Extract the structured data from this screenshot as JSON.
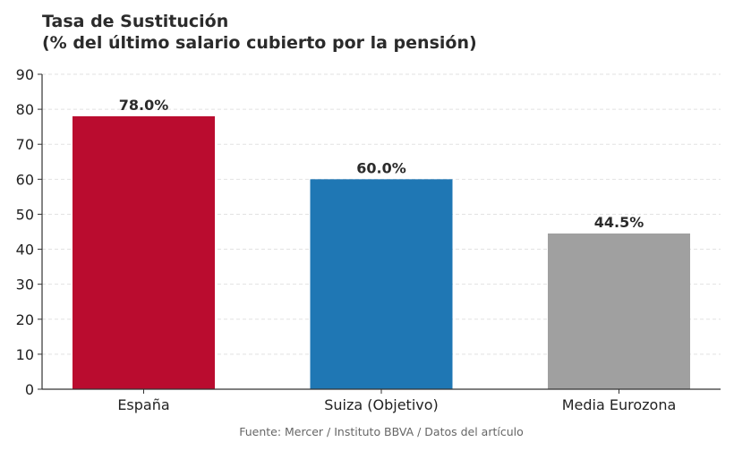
{
  "chart_data": {
    "type": "bar",
    "title": "Tasa de Sustitución\n(% del último salario cubierto por la pensión)",
    "xlabel": "",
    "ylabel": "",
    "categories": [
      "España",
      "Suiza (Objetivo)",
      "Media Eurozona"
    ],
    "values": [
      78.0,
      60.0,
      44.5
    ],
    "data_labels": [
      "78.0%",
      "60.0%",
      "44.5%"
    ],
    "colors": [
      "#BA0C2F",
      "#1F77B4",
      "#A0A0A0"
    ],
    "ylim": [
      0,
      90
    ],
    "yticks": [
      0,
      10,
      20,
      30,
      40,
      50,
      60,
      70,
      80,
      90
    ],
    "grid": "horizontal dashed",
    "legend": "none"
  },
  "source": "Fuente: Mercer / Instituto BBVA / Datos del artículo"
}
